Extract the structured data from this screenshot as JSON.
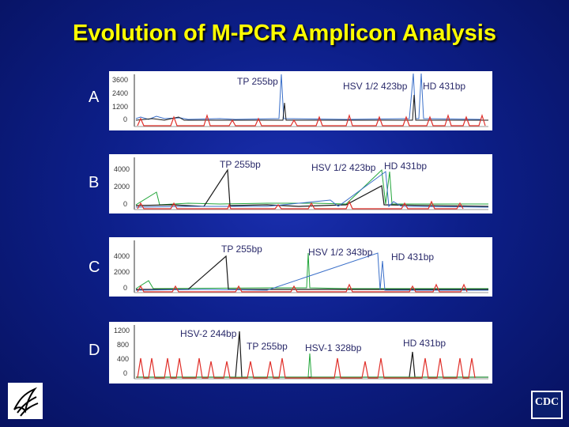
{
  "title": "Evolution of M-PCR Amplicon Analysis",
  "colors": {
    "title": "#ffff00",
    "background": "#0d1f8a",
    "red": "#e0302a",
    "blue": "#3a6fc9",
    "black": "#1a1a1a",
    "green": "#22a63a",
    "gray": "#8a8a8a"
  },
  "rows": [
    {
      "label": "A",
      "ticks": [
        "3600",
        "2400",
        "1200",
        "0"
      ],
      "peaks": [
        "TP 255bp",
        "HSV 1/2 423bp",
        "HD 431bp"
      ]
    },
    {
      "label": "B",
      "ticks": [
        "4000",
        "2000",
        "0"
      ],
      "peaks": [
        "TP 255bp",
        "HSV 1/2 423bp",
        "HD 431bp"
      ]
    },
    {
      "label": "C",
      "ticks": [
        "4000",
        "2000",
        "0"
      ],
      "peaks": [
        "TP 255bp",
        "HSV 1/2 343bp",
        "HD 431bp"
      ]
    },
    {
      "label": "D",
      "ticks": [
        "1200",
        "800",
        "400",
        "0"
      ],
      "peaks": [
        "HSV-2 244bp",
        "TP 255bp",
        "HSV-1 328bp",
        "HD 431bp"
      ]
    }
  ],
  "logos": {
    "left": "hhs-eagle-logo",
    "right": "CDC"
  }
}
